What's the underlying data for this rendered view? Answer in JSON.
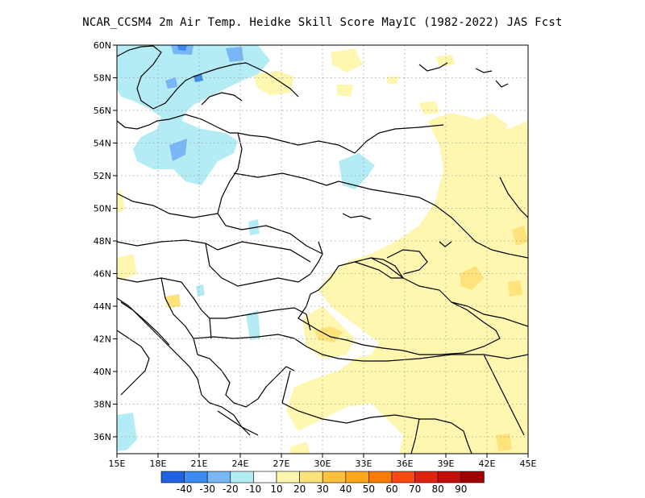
{
  "title": "NCAR_CCSM4  2m Air Temp. Heidke Skill Score MayIC (1982-2022) JAS Fcst",
  "map": {
    "lon_range": [
      15,
      45
    ],
    "lat_range": [
      35,
      60
    ],
    "x_ticks": [
      "15E",
      "18E",
      "21E",
      "24E",
      "27E",
      "30E",
      "33E",
      "36E",
      "39E",
      "42E",
      "45E"
    ],
    "y_ticks": [
      "60N",
      "58N",
      "56N",
      "54N",
      "52N",
      "50N",
      "48N",
      "46N",
      "44N",
      "42N",
      "40N",
      "38N",
      "36N"
    ]
  },
  "colorbar": {
    "colors": [
      "#1f63e0",
      "#3a8cf0",
      "#78b6f5",
      "#b4ecf5",
      "#ffffff",
      "#fff7b0",
      "#ffe37a",
      "#ffc13d",
      "#ffa51a",
      "#ff7a00",
      "#ff4a0f",
      "#e0220f",
      "#c40f0f",
      "#a00000"
    ],
    "labels": [
      "-40",
      "-30",
      "-20",
      "-10",
      "10",
      "20",
      "30",
      "40",
      "50",
      "60",
      "70",
      "80",
      "90"
    ]
  }
}
